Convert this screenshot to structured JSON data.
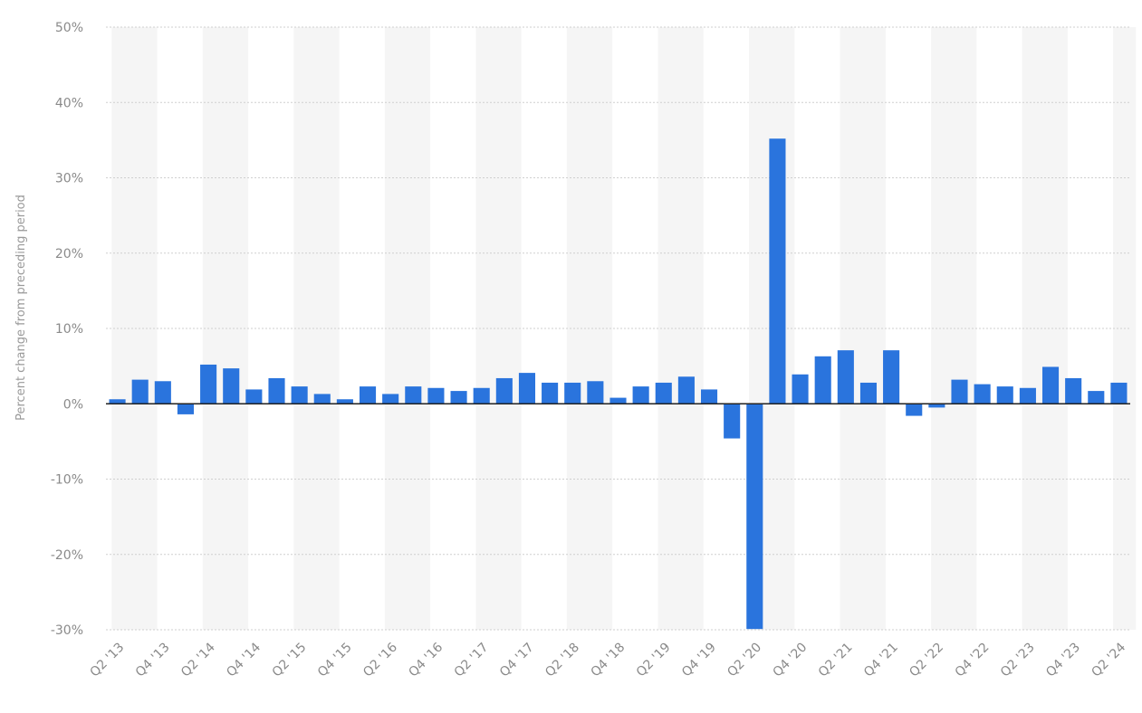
{
  "chart_data": {
    "type": "bar",
    "title": "",
    "xlabel": "",
    "ylabel": "Percent change from preceding period",
    "ylim": [
      -30,
      50
    ],
    "yticks": [
      50,
      40,
      30,
      20,
      10,
      0,
      -10,
      -20,
      -30
    ],
    "ytick_labels": [
      "50%",
      "40%",
      "30%",
      "20%",
      "10%",
      "0%",
      "-10%",
      "-20%",
      "-30%"
    ],
    "grid": true,
    "bar_color": "#2a74dd",
    "band_color": "#f5f5f5",
    "categories": [
      "Q2 '13",
      "Q3 '13",
      "Q4 '13",
      "Q1 '14",
      "Q2 '14",
      "Q3 '14",
      "Q4 '14",
      "Q1 '15",
      "Q2 '15",
      "Q3 '15",
      "Q4 '15",
      "Q1 '16",
      "Q2 '16",
      "Q3 '16",
      "Q4 '16",
      "Q1 '17",
      "Q2 '17",
      "Q3 '17",
      "Q4 '17",
      "Q1 '18",
      "Q2 '18",
      "Q3 '18",
      "Q4 '18",
      "Q1 '19",
      "Q2 '19",
      "Q3 '19",
      "Q4 '19",
      "Q1 '20",
      "Q2 '20",
      "Q3 '20",
      "Q4 '20",
      "Q1 '21",
      "Q2 '21",
      "Q3 '21",
      "Q4 '21",
      "Q1 '22",
      "Q2 '22",
      "Q3 '22",
      "Q4 '22",
      "Q1 '23",
      "Q2 '23",
      "Q3 '23",
      "Q4 '23",
      "Q1 '24",
      "Q2 '24"
    ],
    "x_tick_labels": [
      "Q2 '13",
      "Q4 '13",
      "Q2 '14",
      "Q4 '14",
      "Q2 '15",
      "Q4 '15",
      "Q2 '16",
      "Q4 '16",
      "Q2 '17",
      "Q4 '17",
      "Q2 '18",
      "Q4 '18",
      "Q2 '19",
      "Q4 '19",
      "Q2 '20",
      "Q4 '20",
      "Q2 '21",
      "Q4 '21",
      "Q2 '22",
      "Q4 '22",
      "Q2 '23",
      "Q4 '23",
      "Q2 '24"
    ],
    "values": [
      0.6,
      3.2,
      3.0,
      -1.4,
      5.2,
      4.7,
      1.9,
      3.4,
      2.3,
      1.3,
      0.6,
      2.3,
      1.3,
      2.3,
      2.1,
      1.7,
      2.1,
      3.4,
      4.1,
      2.8,
      2.8,
      3.0,
      0.8,
      2.3,
      2.8,
      3.6,
      1.9,
      -4.6,
      -29.9,
      35.2,
      3.9,
      6.3,
      7.1,
      2.8,
      7.1,
      -1.6,
      -0.5,
      3.2,
      2.6,
      2.3,
      2.1,
      4.9,
      3.4,
      1.7,
      2.8
    ]
  }
}
